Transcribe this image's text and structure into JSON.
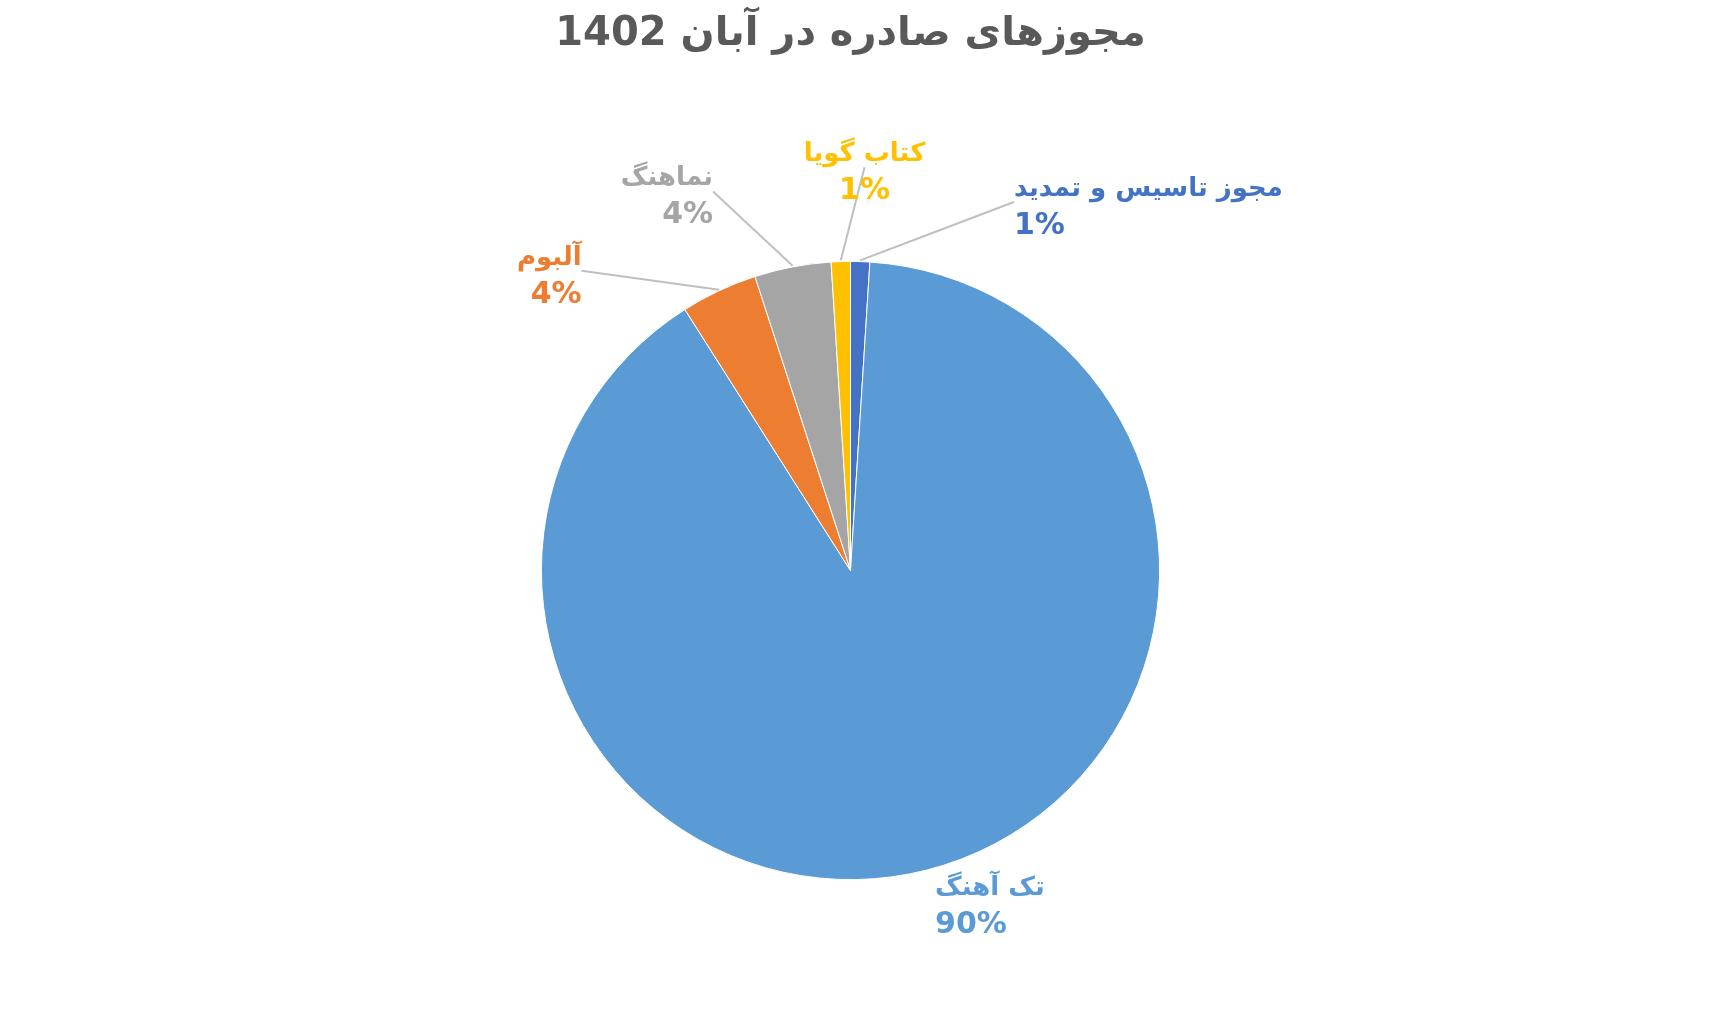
{
  "chart_data": {
    "type": "pie",
    "title": "مجوزهای صادره در آبان 1402",
    "categories": [
      "مجوز تاسیس و تمدید",
      "تک آهنگ",
      "آلبوم",
      "نماهنگ",
      "کتاب گویا"
    ],
    "values": [
      1,
      90,
      4,
      4,
      1
    ],
    "value_labels": [
      "1%",
      "90%",
      "4%",
      "4%",
      "1%"
    ],
    "colors": [
      "#4472c4",
      "#5b9bd5",
      "#ed7d31",
      "#a5a5a5",
      "#ffc000"
    ]
  }
}
